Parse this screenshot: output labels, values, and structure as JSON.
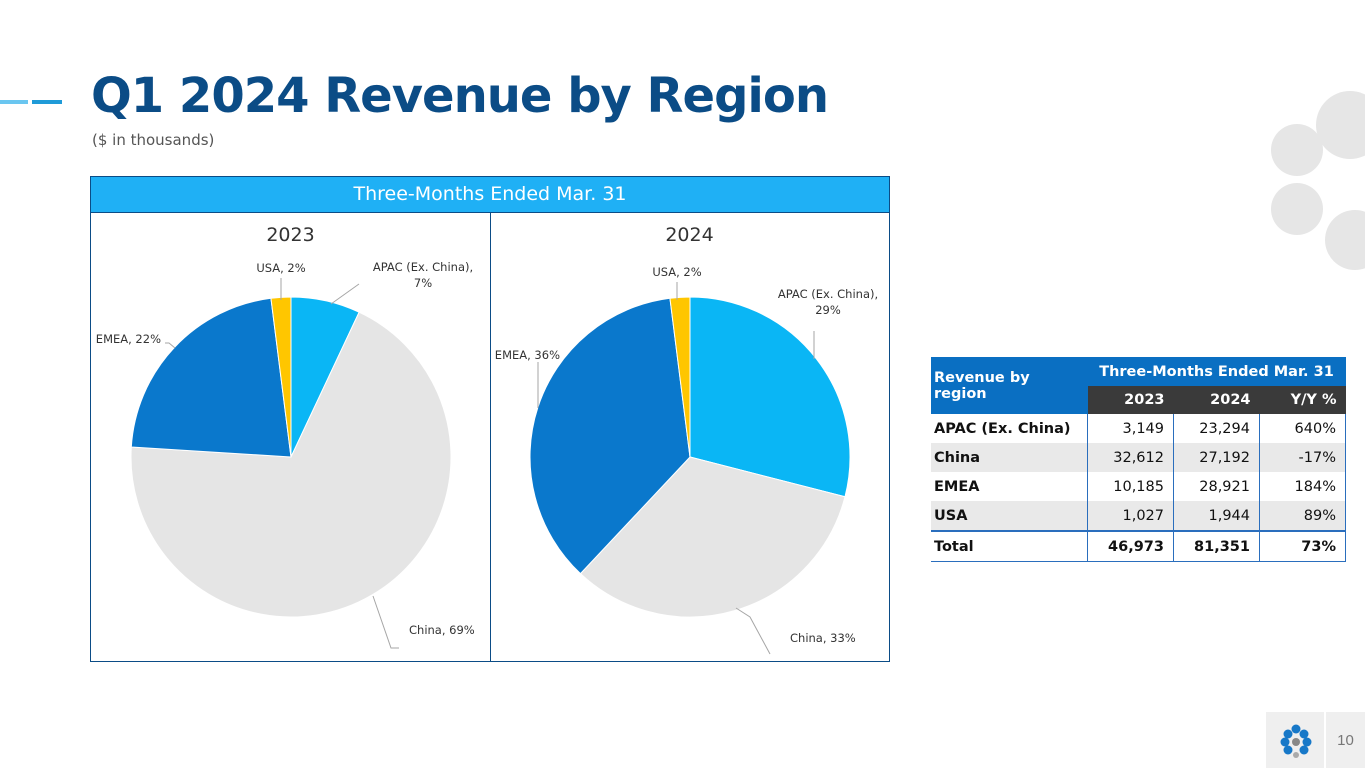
{
  "slide": {
    "title": "Q1 2024 Revenue by Region",
    "subtitle": "($ in thousands)",
    "page_number": "10"
  },
  "colors": {
    "title": "#0b4c86",
    "header_blue": "#1fb0f5",
    "apac": "#0ab6f5",
    "china": "#e5e5e5",
    "emea": "#0a78cc",
    "usa": "#ffc600"
  },
  "chart_box": {
    "header": "Three-Months Ended Mar. 31"
  },
  "chart_data": [
    {
      "type": "pie",
      "title": "2023",
      "categories": [
        "APAC (Ex. China)",
        "China",
        "EMEA",
        "USA"
      ],
      "values": [
        7,
        69,
        22,
        2
      ],
      "labels": [
        "APAC (Ex. China), 7%",
        "China, 69%",
        "EMEA, 22%",
        "USA, 2%"
      ],
      "colors": [
        "#0ab6f5",
        "#e5e5e5",
        "#0a78cc",
        "#ffc600"
      ]
    },
    {
      "type": "pie",
      "title": "2024",
      "categories": [
        "APAC (Ex. China)",
        "China",
        "EMEA",
        "USA"
      ],
      "values": [
        29,
        33,
        36,
        2
      ],
      "labels": [
        "APAC (Ex. China), 29%",
        "China, 33%",
        "EMEA, 36%",
        "USA, 2%"
      ],
      "colors": [
        "#0ab6f5",
        "#e5e5e5",
        "#0a78cc",
        "#ffc600"
      ]
    }
  ],
  "table": {
    "row_header": "Revenue by region",
    "group_header": "Three-Months Ended Mar. 31",
    "columns": [
      "2023",
      "2024",
      "Y/Y %"
    ],
    "rows": [
      {
        "label": "APAC (Ex. China)",
        "values": [
          "3,149",
          "23,294",
          "640%"
        ]
      },
      {
        "label": "China",
        "values": [
          "32,612",
          "27,192",
          "-17%"
        ]
      },
      {
        "label": "EMEA",
        "values": [
          "10,185",
          "28,921",
          "184%"
        ]
      },
      {
        "label": "USA",
        "values": [
          "1,027",
          "1,944",
          "89%"
        ]
      }
    ],
    "total": {
      "label": "Total",
      "values": [
        "46,973",
        "81,351",
        "73%"
      ]
    }
  }
}
